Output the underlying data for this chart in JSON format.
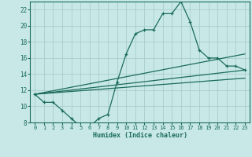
{
  "xlabel": "Humidex (Indice chaleur)",
  "bg_color": "#c8e8e8",
  "grid_color": "#a8cccc",
  "line_color": "#1a6b5a",
  "xlim": [
    -0.5,
    23.5
  ],
  "ylim": [
    8,
    23
  ],
  "yticks": [
    8,
    10,
    12,
    14,
    16,
    18,
    20,
    22
  ],
  "xticks": [
    0,
    1,
    2,
    3,
    4,
    5,
    6,
    7,
    8,
    9,
    10,
    11,
    12,
    13,
    14,
    15,
    16,
    17,
    18,
    19,
    20,
    21,
    22,
    23
  ],
  "main_series_x": [
    0,
    1,
    2,
    3,
    4,
    5,
    6,
    7,
    8,
    9,
    10,
    11,
    12,
    13,
    14,
    15,
    16,
    17,
    18,
    19,
    20,
    21,
    22,
    23
  ],
  "main_series_y": [
    11.5,
    10.5,
    10.5,
    9.5,
    8.5,
    7.5,
    7.5,
    8.5,
    9.0,
    13.0,
    16.5,
    19.0,
    19.5,
    19.5,
    21.5,
    21.5,
    23.0,
    20.5,
    17.0,
    16.0,
    16.0,
    15.0,
    15.0,
    14.5
  ],
  "line1_x": [
    0,
    23
  ],
  "line1_y": [
    11.5,
    16.5
  ],
  "line2_x": [
    0,
    23
  ],
  "line2_y": [
    11.5,
    14.5
  ],
  "line3_x": [
    0,
    23
  ],
  "line3_y": [
    11.5,
    13.5
  ]
}
